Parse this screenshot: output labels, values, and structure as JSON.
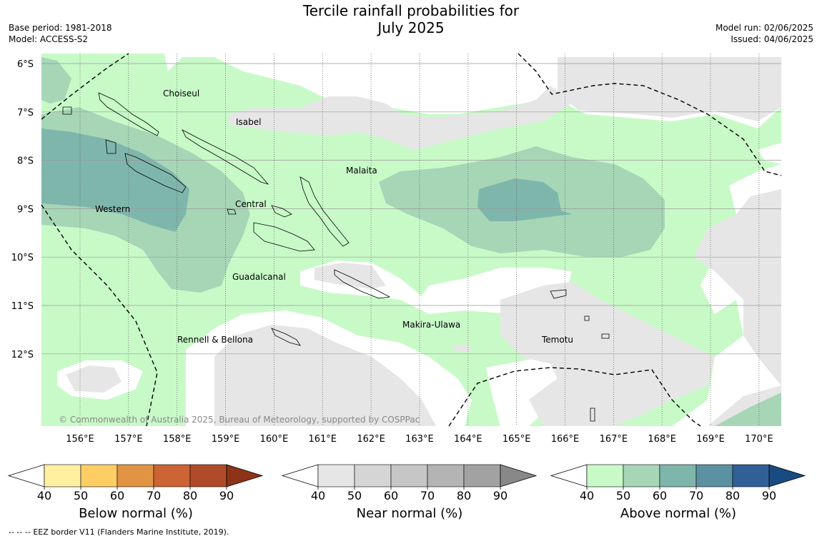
{
  "header": {
    "title_line1": "Tercile rainfall probabilities for",
    "title_line2": "July 2025",
    "base_period": "Base period: 1981-2018",
    "model": "Model: ACCESS-S2",
    "model_run": "Model run: 02/06/2025",
    "issued": "Issued: 04/06/2025"
  },
  "map": {
    "lat_labels": [
      "6°S",
      "7°S",
      "8°S",
      "9°S",
      "10°S",
      "11°S",
      "12°S"
    ],
    "lon_labels": [
      "156°E",
      "157°E",
      "158°E",
      "159°E",
      "160°E",
      "161°E",
      "162°E",
      "163°E",
      "164°E",
      "165°E",
      "166°E",
      "167°E",
      "168°E",
      "169°E",
      "170°E"
    ],
    "regions": [
      "Choiseul",
      "Isabel",
      "Malaita",
      "Western",
      "Central",
      "Guadalcanal",
      "Makira-Ulawa",
      "Rennell & Bellona",
      "Temotu"
    ],
    "copyright": "© Commonwealth of Australia 2025, Bureau of Meteorology, supported by COSPPac"
  },
  "legend": {
    "ticks": [
      "40",
      "50",
      "60",
      "70",
      "80",
      "90"
    ],
    "below": {
      "label": "Below normal (%)",
      "colors": [
        "#fff0a0",
        "#fecd63",
        "#e19444",
        "#cc6434",
        "#b04b2a",
        "#8c3318"
      ]
    },
    "near": {
      "label": "Near normal (%)",
      "colors": [
        "#e6e6e6",
        "#d5d5d5",
        "#c6c6c6",
        "#b4b4b4",
        "#a2a2a2",
        "#888888"
      ]
    },
    "above": {
      "label": "Above normal (%)",
      "colors": [
        "#c8fac8",
        "#a6d6b6",
        "#7fb6ac",
        "#5b91a0",
        "#306095",
        "#1a4a82"
      ]
    }
  },
  "footer": {
    "dashes": "--  --  --",
    "eez_note": "EEZ border V11 (Flanders Marine Institute, 2019)."
  }
}
